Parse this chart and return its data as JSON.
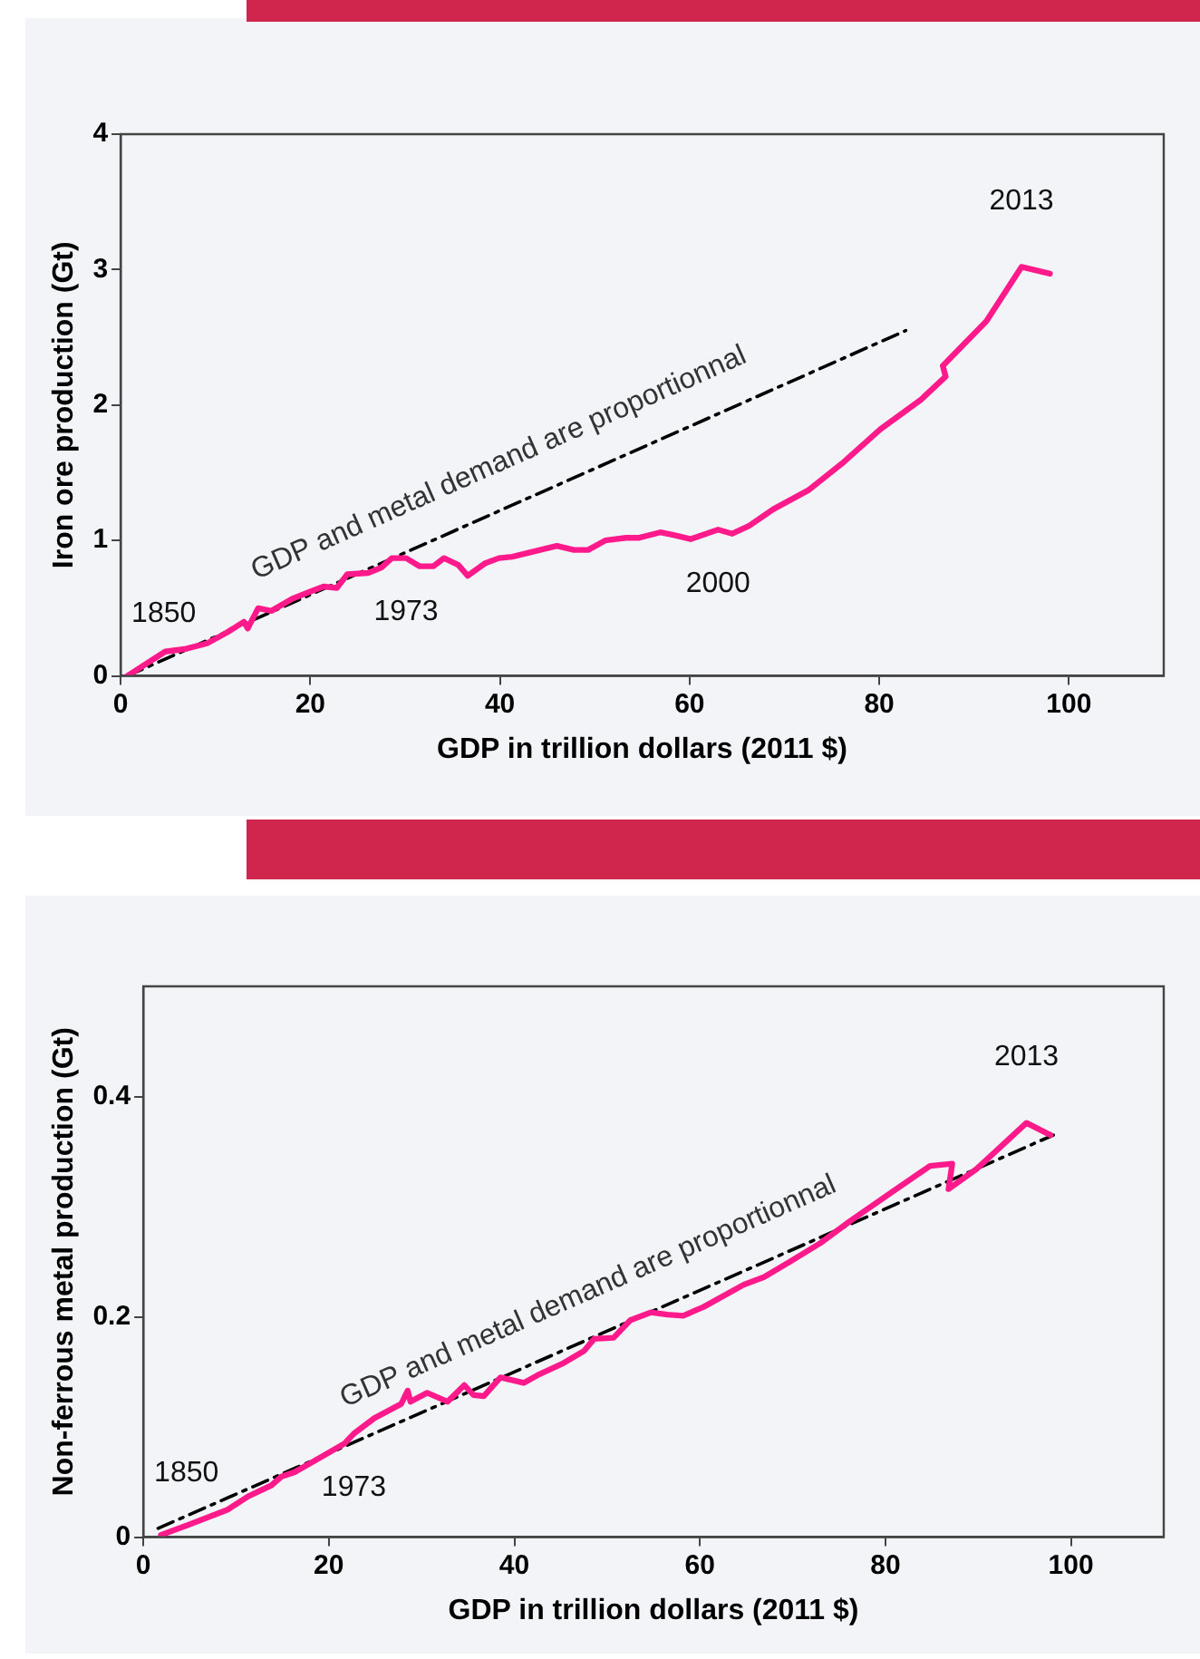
{
  "chart_data": [
    {
      "type": "line",
      "xlabel": "GDP in trillion dollars (2011 $)",
      "ylabel": "Iron ore production (Gt)",
      "xlim": [
        0,
        110
      ],
      "xticks": [
        0,
        20,
        40,
        60,
        80,
        100
      ],
      "ylim": [
        0,
        4
      ],
      "yticks": [
        0,
        1,
        2,
        3,
        4
      ],
      "grid": false,
      "legend": false,
      "marker": "none",
      "annotations": [
        {
          "text": "1850",
          "x": 0.7,
          "y": 0
        },
        {
          "text": "1973",
          "x": 30.1,
          "y": 0.87
        },
        {
          "text": "2000",
          "x": 63.0,
          "y": 1.08
        },
        {
          "text": "2013",
          "x": 95.0,
          "y": 3.02
        }
      ],
      "series": [
        {
          "color": "#ff1a8c",
          "line_style": "solid",
          "x": [
            0.7,
            4.7,
            6.9,
            9.1,
            11.2,
            13.0,
            13.4,
            14.5,
            15.9,
            18.1,
            19.9,
            21.4,
            22.8,
            23.9,
            26.1,
            27.5,
            28.6,
            30.1,
            31.5,
            33.0,
            34.1,
            35.6,
            36.6,
            38.4,
            39.9,
            41.3,
            46.0,
            47.8,
            49.3,
            51.1,
            53.3,
            54.7,
            56.9,
            58.3,
            60.1,
            63.0,
            64.5,
            66.3,
            68.8,
            72.5,
            76.1,
            80.1,
            84.4,
            87.0,
            86.7,
            91.3,
            95.0,
            98.0
          ],
          "values": [
            0,
            0.18,
            0.2,
            0.24,
            0.32,
            0.4,
            0.35,
            0.5,
            0.48,
            0.57,
            0.62,
            0.66,
            0.65,
            0.75,
            0.76,
            0.8,
            0.87,
            0.87,
            0.81,
            0.81,
            0.87,
            0.82,
            0.74,
            0.83,
            0.87,
            0.88,
            0.96,
            0.93,
            0.93,
            1.0,
            1.02,
            1.02,
            1.06,
            1.04,
            1.01,
            1.08,
            1.05,
            1.11,
            1.23,
            1.37,
            1.57,
            1.82,
            2.04,
            2.21,
            2.29,
            2.62,
            3.02,
            2.97
          ]
        },
        {
          "name": "GDP and metal demand are proportionnal",
          "type": "line",
          "color": "#000000",
          "line_style": "dashed",
          "x": [
            0.7,
            82.8
          ],
          "values": [
            0,
            2.55
          ]
        }
      ]
    },
    {
      "type": "line",
      "xlabel": "GDP in trillion dollars (2011 $)",
      "ylabel": "Non-ferrous metal production (Gt)",
      "xlim": [
        0,
        110
      ],
      "xticks": [
        0,
        20,
        40,
        60,
        80,
        100
      ],
      "ylim": [
        0,
        0.5
      ],
      "yticks": [
        0,
        0.2,
        0.4
      ],
      "grid": false,
      "legend": false,
      "marker": "none",
      "annotations": [
        {
          "text": "1850",
          "x": 1.9,
          "y": 0.002
        },
        {
          "text": "1973",
          "x": 22.7,
          "y": 0.094
        },
        {
          "text": "2013",
          "x": 95.2,
          "y": 0.376
        }
      ],
      "series": [
        {
          "color": "#ff1a8c",
          "line_style": "solid",
          "x": [
            1.9,
            4.8,
            9.1,
            11.3,
            13.8,
            14.9,
            16.3,
            18.4,
            21.7,
            22.7,
            24.9,
            27.8,
            28.5,
            28.8,
            30.6,
            32.8,
            34.6,
            35.6,
            36.7,
            38.5,
            41.0,
            42.5,
            45.3,
            47.5,
            48.6,
            50.7,
            52.5,
            54.7,
            56.5,
            58.2,
            60.4,
            64.7,
            66.9,
            69.7,
            73.0,
            76.2,
            80.5,
            84.8,
            87.2,
            86.8,
            89.8,
            95.2,
            97.8
          ],
          "values": [
            0.002,
            0.011,
            0.025,
            0.037,
            0.047,
            0.055,
            0.059,
            0.069,
            0.085,
            0.094,
            0.108,
            0.121,
            0.133,
            0.123,
            0.131,
            0.123,
            0.138,
            0.129,
            0.128,
            0.145,
            0.14,
            0.147,
            0.158,
            0.169,
            0.18,
            0.181,
            0.197,
            0.204,
            0.202,
            0.201,
            0.209,
            0.229,
            0.236,
            0.25,
            0.267,
            0.287,
            0.312,
            0.337,
            0.339,
            0.316,
            0.334,
            0.376,
            0.365
          ]
        },
        {
          "name": "GDP and metal demand are proportionnal",
          "type": "line",
          "color": "#000000",
          "line_style": "dashed",
          "x": [
            1.6,
            98.1
          ],
          "values": [
            0.008,
            0.365
          ]
        }
      ]
    }
  ]
}
